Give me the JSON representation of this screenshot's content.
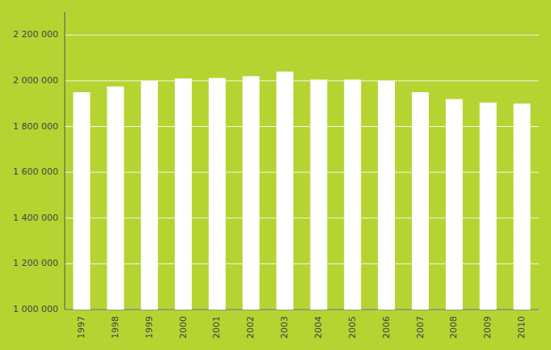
{
  "chart_data": {
    "type": "bar",
    "categories": [
      "1997",
      "1998",
      "1999",
      "2000",
      "2001",
      "2002",
      "2003",
      "2004",
      "2005",
      "2006",
      "2007",
      "2008",
      "2009",
      "2010"
    ],
    "values": [
      1950000,
      1975000,
      2000000,
      2010000,
      2012000,
      2020000,
      2040000,
      2005000,
      2005000,
      2000000,
      1950000,
      1920000,
      1905000,
      1900000
    ],
    "color": "#ffffff",
    "ylim": [
      1000000,
      2300000
    ],
    "yticks": [
      {
        "value": 1000000,
        "label": "1 000 000"
      },
      {
        "value": 1200000,
        "label": "1 200 000"
      },
      {
        "value": 1400000,
        "label": "1 400 000"
      },
      {
        "value": 1600000,
        "label": "1 600 000"
      },
      {
        "value": 1800000,
        "label": "1 800 000"
      },
      {
        "value": 2000000,
        "label": "2 000 000"
      },
      {
        "value": 2200000,
        "label": "2 200 000"
      }
    ],
    "grid": true
  }
}
